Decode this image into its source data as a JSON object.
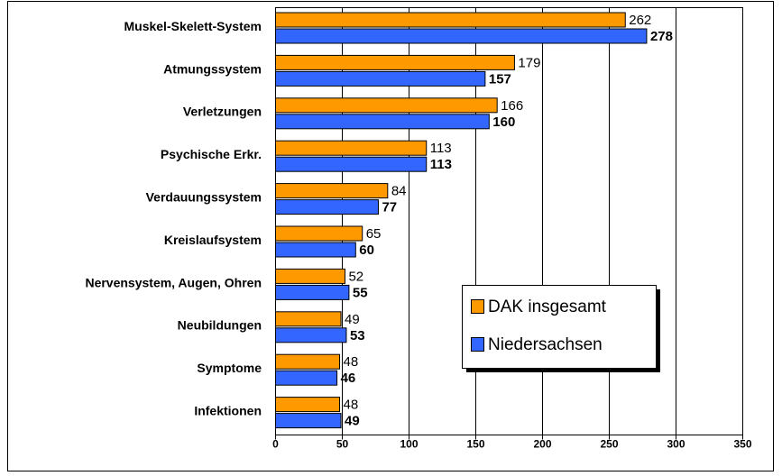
{
  "chart_data": {
    "type": "hbar",
    "categories": [
      "Muskel-Skelett-System",
      "Atmungssystem",
      "Verletzungen",
      "Psychische Erkr.",
      "Verdauungssystem",
      "Kreislaufsystem",
      "Nervensystem, Augen, Ohren",
      "Neubildungen",
      "Symptome",
      "Infektionen"
    ],
    "series": [
      {
        "name": "DAK insgesamt",
        "color": "#FF9900",
        "values": [
          262,
          179,
          166,
          113,
          84,
          65,
          52,
          49,
          48,
          48
        ]
      },
      {
        "name": "Niedersachsen",
        "color": "#3366FF",
        "values": [
          278,
          157,
          160,
          113,
          77,
          60,
          55,
          53,
          46,
          49
        ]
      }
    ],
    "xlim": [
      0,
      350
    ],
    "xticks": [
      0,
      50,
      100,
      150,
      200,
      250,
      300,
      350
    ],
    "grid": true
  }
}
